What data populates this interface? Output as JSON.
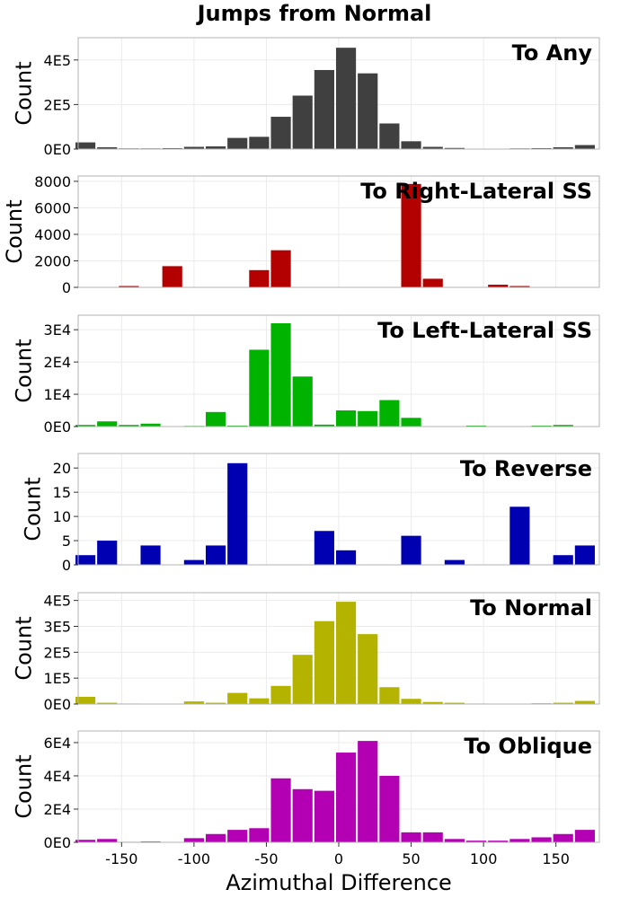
{
  "chart_data": {
    "type": "bar",
    "title": "Jumps from Normal",
    "xlabel": "Azimuthal Difference",
    "xlim": [
      -180,
      180
    ],
    "xticks": [
      -150,
      -100,
      -50,
      0,
      50,
      100,
      150
    ],
    "xtick_labels": [
      "-150",
      "-100",
      "-50",
      "0",
      "50",
      "100",
      "150"
    ],
    "grid": true,
    "bin_centers": [
      -175,
      -160,
      -145,
      -130,
      -115,
      -100,
      -85,
      -70,
      -55,
      -40,
      -25,
      -10,
      5,
      20,
      35,
      50,
      65,
      80,
      95,
      110,
      125,
      140,
      155,
      170
    ],
    "panels": [
      {
        "label": "To Any",
        "ylabel": "Count",
        "color": "#404040",
        "ylim": [
          0,
          500000
        ],
        "yticks": [
          0,
          200000,
          400000
        ],
        "ytick_labels": [
          "0E0",
          "2E5",
          "4E5"
        ],
        "values": [
          30000,
          8000,
          3000,
          3000,
          4000,
          10000,
          12000,
          50000,
          55000,
          145000,
          240000,
          355000,
          455000,
          340000,
          115000,
          35000,
          10000,
          5000,
          2000,
          2000,
          3000,
          4000,
          8000,
          18000
        ]
      },
      {
        "label": "To Right-Lateral SS",
        "ylabel": "Count",
        "color": "#b30000",
        "ylim": [
          0,
          8400
        ],
        "yticks": [
          0,
          2000,
          4000,
          6000,
          8000
        ],
        "ytick_labels": [
          "0",
          "2000",
          "4000",
          "6000",
          "8000"
        ],
        "values": [
          0,
          0,
          100,
          0,
          1600,
          0,
          0,
          0,
          1300,
          2800,
          0,
          0,
          0,
          0,
          0,
          7800,
          650,
          0,
          0,
          200,
          100,
          0,
          0,
          0
        ]
      },
      {
        "label": "To Left-Lateral SS",
        "ylabel": "Count",
        "color": "#00b300",
        "ylim": [
          0,
          34500
        ],
        "yticks": [
          0,
          10000,
          20000,
          30000
        ],
        "ytick_labels": [
          "0E0",
          "1E4",
          "2E4",
          "3E4"
        ],
        "values": [
          500,
          1600,
          500,
          900,
          0,
          200,
          4500,
          300,
          23800,
          32000,
          15500,
          600,
          5000,
          4800,
          8200,
          2700,
          0,
          0,
          300,
          100,
          100,
          300,
          500,
          0
        ]
      },
      {
        "label": "To Reverse",
        "ylabel": "Count",
        "color": "#0000b3",
        "ylim": [
          0,
          23
        ],
        "yticks": [
          0,
          5,
          10,
          15,
          20
        ],
        "ytick_labels": [
          "0",
          "5",
          "10",
          "15",
          "20"
        ],
        "values": [
          2,
          5,
          0,
          4,
          0,
          1,
          4,
          21,
          0,
          0,
          0,
          7,
          3,
          0,
          0,
          6,
          0,
          1,
          0,
          0,
          12,
          0,
          2,
          4
        ]
      },
      {
        "label": "To Normal",
        "ylabel": "Count",
        "color": "#b3b300",
        "ylim": [
          0,
          430000
        ],
        "yticks": [
          0,
          100000,
          200000,
          300000,
          400000
        ],
        "ytick_labels": [
          "0E0",
          "1E5",
          "2E5",
          "3E5",
          "4E5"
        ],
        "values": [
          28000,
          5000,
          2000,
          1000,
          1000,
          10000,
          5000,
          43000,
          22000,
          70000,
          190000,
          320000,
          395000,
          270000,
          65000,
          20000,
          8000,
          5000,
          2000,
          1000,
          1000,
          3000,
          5000,
          12000
        ]
      },
      {
        "label": "To Oblique",
        "ylabel": "Count",
        "color": "#b300b3",
        "ylim": [
          0,
          67000
        ],
        "yticks": [
          0,
          20000,
          40000,
          60000
        ],
        "ytick_labels": [
          "0E0",
          "2E4",
          "4E4",
          "6E4"
        ],
        "values": [
          1500,
          2000,
          300,
          500,
          200,
          2500,
          5000,
          7500,
          8500,
          38500,
          32000,
          31000,
          54000,
          61000,
          40000,
          6000,
          6000,
          2000,
          1000,
          1000,
          2000,
          3000,
          5000,
          7500
        ]
      }
    ]
  }
}
